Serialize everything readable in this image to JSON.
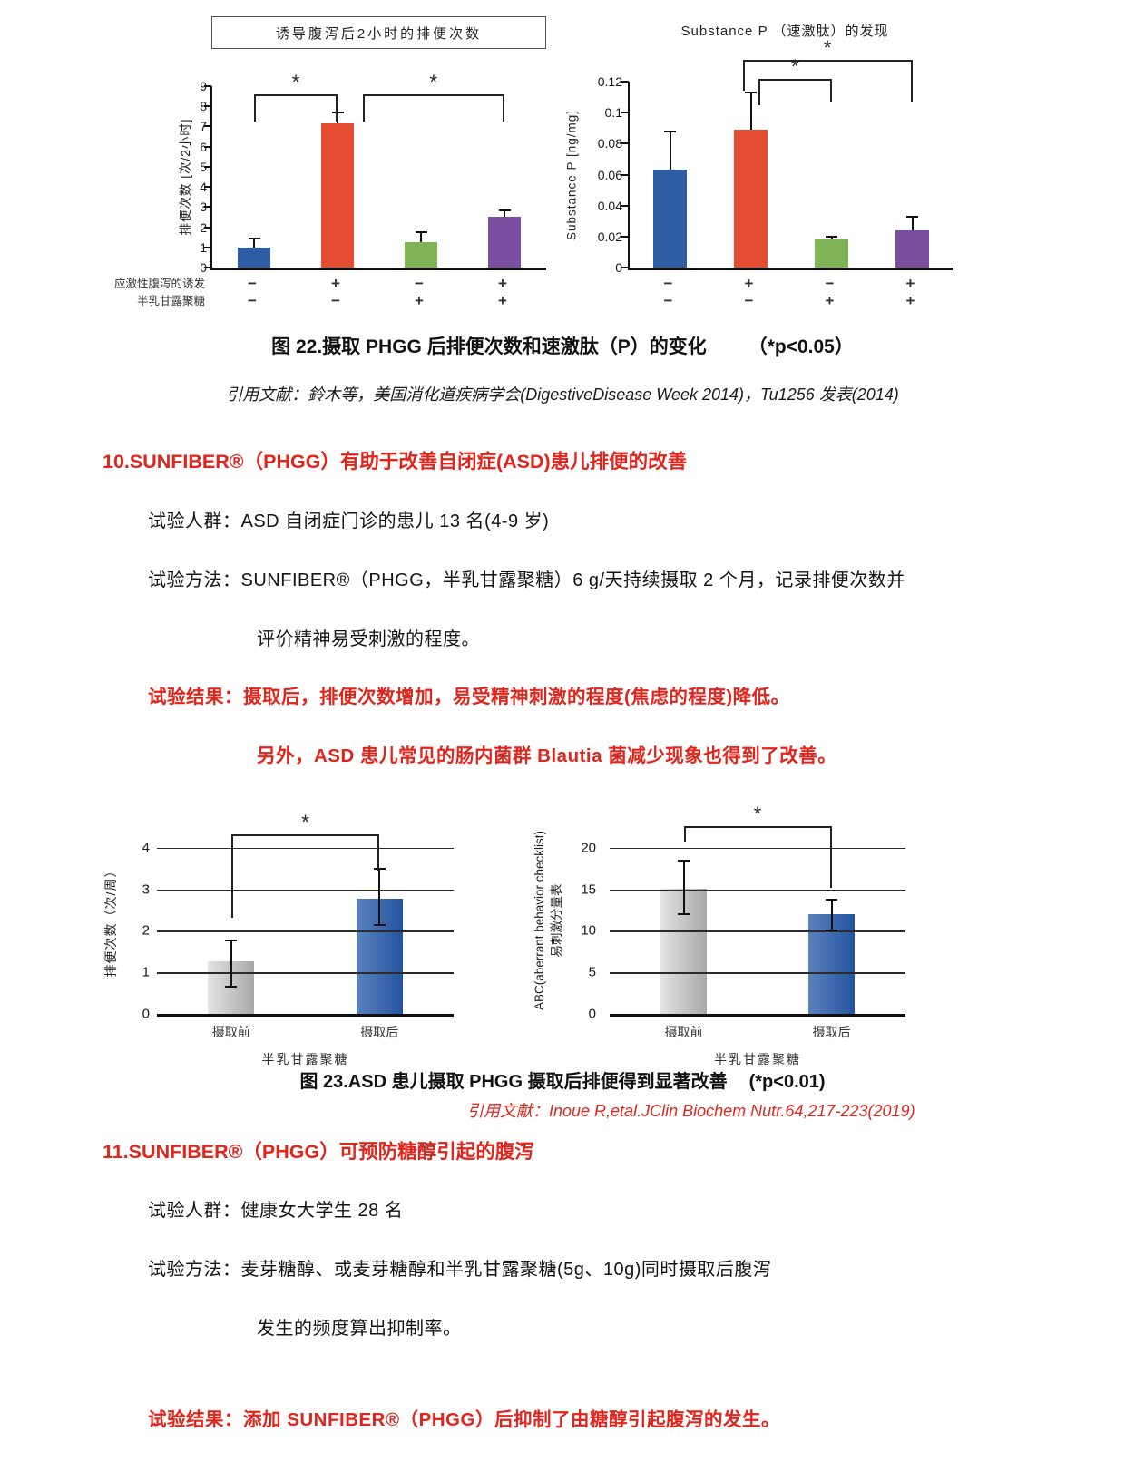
{
  "colors": {
    "accent_red": "#e0251c",
    "bar_blue": "#2f5da4",
    "bar_red": "#e44d32",
    "bar_green": "#7eb356",
    "bar_purple": "#7a4f9f",
    "bar_gray": "#b5b5b5",
    "bar_deep_blue": "#24549f"
  },
  "chart_data": [
    {
      "id": "fig22-defecation",
      "type": "bar",
      "title": "诱导腹泻后2小时的排便次数",
      "ylabel": "排便次数 [次/2小时]",
      "ylim": [
        0,
        9
      ],
      "yticks": [
        0,
        1,
        2,
        3,
        4,
        5,
        6,
        7,
        8,
        9
      ],
      "values": [
        1.0,
        7.15,
        1.25,
        2.5
      ],
      "errors_up": [
        0.45,
        0.55,
        0.5,
        0.35
      ],
      "bar_colors": [
        "#2f5da4",
        "#e44d32",
        "#7eb356",
        "#7a4f9f"
      ],
      "bar_frac": 0.4,
      "axis_ticks": true,
      "grid": false,
      "xtick_rows": [
        [
          "−",
          "+",
          "−",
          "+"
        ],
        [
          "−",
          "−",
          "+",
          "+"
        ]
      ],
      "xtick_row_labels": [
        "应激性腹泻的诱发",
        "半乳甘露聚糖"
      ],
      "brackets": [
        {
          "x1": 0,
          "x2": 1,
          "y": 8.6,
          "drop1": 1.35,
          "drop2": 1.35,
          "label": "*"
        },
        {
          "x1": 1,
          "x2": 3,
          "dx1": 0.3,
          "y": 8.6,
          "drop1": 1.35,
          "drop2": 1.35,
          "label": "*"
        }
      ]
    },
    {
      "id": "fig22-substance-p",
      "type": "bar",
      "title": "Substance P （速激肽）的发现",
      "ylabel": "Substance P [ng/mg]",
      "ylim": [
        0,
        0.12
      ],
      "yticks": [
        0,
        0.02,
        0.04,
        0.06,
        0.08,
        0.1,
        0.12
      ],
      "ytick_labels": [
        "0",
        "0.02",
        "0.04",
        "0.06",
        "0.08",
        "0.1",
        "0.12"
      ],
      "values": [
        0.063,
        0.089,
        0.018,
        0.024
      ],
      "errors_up": [
        0.025,
        0.024,
        0.002,
        0.009
      ],
      "bar_colors": [
        "#2f5da4",
        "#e44d32",
        "#7eb356",
        "#7a4f9f"
      ],
      "bar_frac": 0.42,
      "axis_ticks": true,
      "grid": false,
      "xtick_rows": [
        [
          "−",
          "+",
          "−",
          "+"
        ],
        [
          "−",
          "−",
          "+",
          "+"
        ]
      ],
      "brackets": [
        {
          "x1": 1,
          "x2": 2,
          "dx1": 0.1,
          "y": 0.122,
          "drop1": 0.017,
          "drop2": 0.015,
          "label": "*"
        },
        {
          "x1": 1,
          "x2": 3,
          "dx1": -0.1,
          "y": 0.134,
          "drop1": 0.02,
          "drop2": 0.027,
          "label": "*"
        }
      ]
    },
    {
      "id": "fig23-defecation",
      "type": "bar",
      "ylabel": "排便次数（次/周）",
      "ylim": [
        0,
        4.5
      ],
      "yticks": [
        0,
        1,
        2,
        3,
        4
      ],
      "values": [
        1.27,
        2.78
      ],
      "errors_up": [
        0.5,
        0.72
      ],
      "errors_down": [
        0.61,
        0.64
      ],
      "bar_colors": [
        "linear-gradient(90deg,#e4e4e4,#a8a8a8)",
        "linear-gradient(90deg,#5b82bd,#24549f)"
      ],
      "bar_frac": 0.31,
      "grid": true,
      "xticks": [
        "摄取前",
        "摄取后"
      ],
      "xlabel": "半乳甘露聚糖",
      "brackets": [
        {
          "x1": 0,
          "x2": 1,
          "y": 4.32,
          "drop1": 2.0,
          "drop2": 0.87,
          "label": "*"
        }
      ]
    },
    {
      "id": "fig23-abc-irritability",
      "type": "bar",
      "ylabel_lines": [
        "ABC(aberrant behavior checklist)",
        "易刺激分量表"
      ],
      "ylim": [
        0,
        22.5
      ],
      "yticks": [
        0,
        5,
        10,
        15,
        20
      ],
      "values": [
        15.1,
        12.0
      ],
      "errors_up": [
        3.4,
        1.8
      ],
      "errors_down": [
        3.1,
        2.0
      ],
      "bar_colors": [
        "linear-gradient(90deg,#e4e4e4,#a8a8a8)",
        "linear-gradient(90deg,#5b82bd,#24549f)"
      ],
      "bar_frac": 0.31,
      "grid": true,
      "xticks": [
        "摄取前",
        "摄取后"
      ],
      "xlabel": "半乳甘露聚糖",
      "brackets": [
        {
          "x1": 0,
          "x2": 1,
          "y": 22.6,
          "drop1": 1.8,
          "drop2": 7.4,
          "label": "*"
        }
      ]
    }
  ],
  "figure22": {
    "caption": "图 22.摄取 PHGG 后排便次数和速激肽（P）的变化",
    "caption_note": "（*p<0.05）",
    "citation": "引用文献：鈴木等，美国消化道疾病学会(DigestiveDisease Week 2014)，Tu1256 发表(2014)"
  },
  "section10": {
    "heading": "10.SUNFIBER®（PHGG）有助于改善自闭症(ASD)患儿排便的改善",
    "line_population": "试验人群：ASD 自闭症门诊的患儿 13 名(4-9 岁)",
    "line_method": "试验方法：SUNFIBER®（PHGG，半乳甘露聚糖）6 g/天持续摄取 2 个月，记录排便次数并",
    "line_method2": "评价精神易受刺激的程度。",
    "result1": "试验结果：摄取后，排便次数增加，易受精神刺激的程度(焦虑的程度)降低。",
    "result2": "另外，ASD 患儿常见的肠内菌群 Blautia 菌减少现象也得到了改善。"
  },
  "figure23": {
    "caption": "图 23.ASD 患儿摄取 PHGG 摄取后排便得到显著改善",
    "caption_note": "(*p<0.01)",
    "citation": "引用文献：Inoue R,etal.JClin Biochem Nutr.64,217-223(2019)"
  },
  "section11": {
    "heading": "11.SUNFIBER®（PHGG）可预防糖醇引起的腹泻",
    "line_population": "试验人群：健康女大学生 28 名",
    "line_method": "试验方法：麦芽糖醇、或麦芽糖醇和半乳甘露聚糖(5g、10g)同时摄取后腹泻",
    "line_method2": "发生的频度算出抑制率。",
    "result": "试验结果：添加 SUNFIBER®（PHGG）后抑制了由糖醇引起腹泻的发生。"
  }
}
